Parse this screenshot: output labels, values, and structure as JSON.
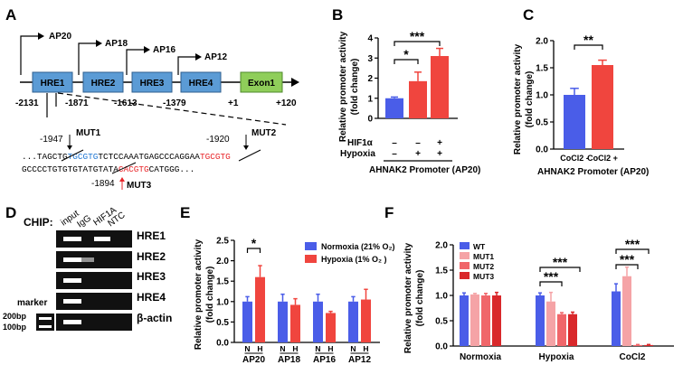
{
  "panels": {
    "A": {
      "label": "A",
      "promoters": [
        "AP20",
        "AP18",
        "AP16",
        "AP12"
      ],
      "boxes": [
        "HRE1",
        "HRE2",
        "HRE3",
        "HRE4",
        "Exon1"
      ],
      "positions": [
        "-2131",
        "-1871",
        "-1613",
        "-1379",
        "+1",
        "+120"
      ],
      "mutations": [
        {
          "pos": "-1947",
          "name": "MUT1"
        },
        {
          "pos": "-1920",
          "name": "MUT2"
        },
        {
          "pos": "-1894",
          "name": "MUT3"
        }
      ],
      "seq1": {
        "a": "...TAGCTG",
        "b": "TGCGTG",
        "c": "TCTCCAAATGAGCCCAGGAA",
        "d": "TGCGTG"
      },
      "seq2": {
        "a": "GCCCCTGTGTGTATGTATA",
        "b": "CACGTG",
        "c": "CATGGG..."
      },
      "colors": {
        "box": "#5b9bd5",
        "exon": "#8fce5a",
        "blue": "#1f77d4",
        "red": "#e8262a"
      }
    },
    "D": {
      "label": "D",
      "title": "CHIP:",
      "lanes": [
        "input",
        "IgG",
        "HIF1A",
        "NTC"
      ],
      "rows": [
        "HRE1",
        "HRE2",
        "HRE3",
        "HRE4",
        "β-actin"
      ],
      "marker": "marker",
      "sizes": [
        "200bp",
        "100bp"
      ]
    }
  },
  "chart_data": [
    {
      "panel": "B",
      "type": "bar",
      "ylabel": "Relative promoter activity (fold change)",
      "ylim": [
        0,
        4
      ],
      "yticks": [
        "0",
        "1",
        "2",
        "3",
        "4"
      ],
      "values": [
        1.0,
        1.85,
        3.1
      ],
      "errors": [
        0.06,
        0.45,
        0.38
      ],
      "colors": [
        "#4a5de8",
        "#f0453e",
        "#f0453e"
      ],
      "row1_label": "HIF1α",
      "row1": [
        "–",
        "–",
        "+"
      ],
      "row2_label": "Hypoxia",
      "row2": [
        "–",
        "+",
        "+"
      ],
      "xlabel": "AHNAK2 Promoter (AP20)",
      "sig": [
        {
          "from": 0,
          "to": 1,
          "text": "*"
        },
        {
          "from": 0,
          "to": 2,
          "text": "***"
        }
      ]
    },
    {
      "panel": "C",
      "type": "bar",
      "ylabel": "Relative promoter activity (fold change)",
      "ylim": [
        0,
        2.0
      ],
      "yticks": [
        "0.0",
        "0.5",
        "1.0",
        "1.5",
        "2.0"
      ],
      "categories": [
        "CoCl2 -",
        "CoCl2 +"
      ],
      "values": [
        1.0,
        1.55
      ],
      "errors": [
        0.12,
        0.09
      ],
      "colors": [
        "#4a5de8",
        "#f0453e"
      ],
      "xlabel": "AHNAK2 Promoter (AP20)",
      "sig": [
        {
          "from": 0,
          "to": 1,
          "text": "**"
        }
      ]
    },
    {
      "panel": "E",
      "type": "bar",
      "ylabel": "Relative promoter activity (fold change)",
      "ylim": [
        0,
        2.5
      ],
      "yticks": [
        "0.0",
        "0.5",
        "1.0",
        "1.5",
        "2.0",
        "2.5"
      ],
      "categories": [
        "AP20",
        "AP18",
        "AP16",
        "AP12"
      ],
      "sublabels": [
        "N",
        "H"
      ],
      "series": [
        {
          "name": "Normoxia (21% O₂)",
          "color": "#4a5de8",
          "values": [
            1.0,
            1.0,
            1.0,
            1.0
          ],
          "errors": [
            0.12,
            0.18,
            0.18,
            0.12
          ]
        },
        {
          "name": "Hypoxia (1% O₂ )",
          "color": "#f0453e",
          "values": [
            1.6,
            0.92,
            0.72,
            1.05
          ],
          "errors": [
            0.28,
            0.15,
            0.04,
            0.25
          ]
        }
      ],
      "sig": [
        {
          "group": 0,
          "text": "*"
        }
      ]
    },
    {
      "panel": "F",
      "type": "bar",
      "ylabel": "Relative promoter activity (fold change)",
      "ylim": [
        0,
        2.0
      ],
      "yticks": [
        "0.0",
        "0.5",
        "1.0",
        "1.5",
        "2.0"
      ],
      "categories": [
        "Normoxia",
        "Hypoxia",
        "CoCl2"
      ],
      "series": [
        {
          "name": "WT",
          "color": "#4a5de8",
          "values": [
            1.0,
            1.0,
            1.08
          ],
          "errors": [
            0.05,
            0.05,
            0.15
          ]
        },
        {
          "name": "MUT1",
          "color": "#f5a3a6",
          "values": [
            1.02,
            0.88,
            1.38
          ],
          "errors": [
            0.02,
            0.18,
            0.18
          ]
        },
        {
          "name": "MUT2",
          "color": "#f0666a",
          "values": [
            1.0,
            0.63,
            0.02
          ],
          "errors": [
            0.04,
            0.03,
            0.01
          ]
        },
        {
          "name": "MUT3",
          "color": "#d9282b",
          "values": [
            1.0,
            0.63,
            0.02
          ],
          "errors": [
            0.06,
            0.04,
            0.01
          ]
        }
      ],
      "sig": [
        {
          "group": 1,
          "from": 0,
          "to": 2,
          "text": "***"
        },
        {
          "group": 1,
          "from": 0,
          "to": 3,
          "text": "***"
        },
        {
          "group": 2,
          "from": 0,
          "to": 2,
          "text": "***"
        },
        {
          "group": 2,
          "from": 0,
          "to": 3,
          "text": "***"
        }
      ]
    }
  ]
}
